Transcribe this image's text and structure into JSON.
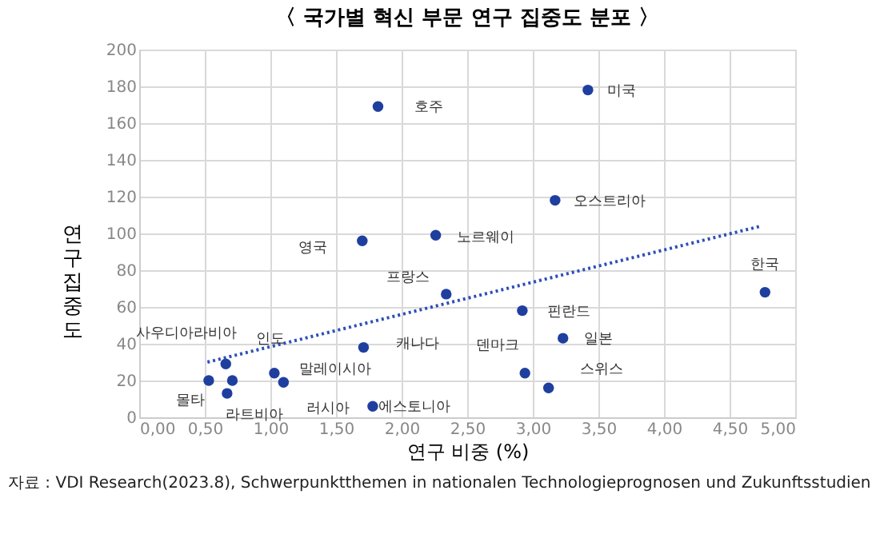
{
  "chart_data": {
    "type": "scatter",
    "title": "〈 국가별 혁신 부문 연구 집중도 분포 〉",
    "xlabel": "연구 비중 (%)",
    "ylabel": "연구 집중도",
    "series": [
      {
        "type": "scatter",
        "color": "#1f3f9f",
        "marker": "circle",
        "x": [
          1.82,
          3.42,
          3.17,
          2.26,
          1.7,
          2.34,
          4.77,
          2.92,
          3.23,
          2.94,
          3.12,
          1.71,
          0.66,
          0.53,
          0.67,
          0.71,
          1.03,
          1.1,
          1.78
        ],
        "values": [
          169,
          178,
          118,
          99,
          96,
          67,
          68,
          58,
          43,
          24,
          16,
          38,
          29,
          20,
          13,
          20,
          24,
          19,
          6
        ]
      },
      {
        "type": "line",
        "color": "#2e4fb8",
        "line_style": "dotted",
        "x": [
          0.52,
          4.74
        ],
        "values": [
          30,
          104
        ]
      }
    ],
    "annotations": [
      {
        "text": "호주",
        "x": 1.82,
        "y": 169
      },
      {
        "text": "미국",
        "x": 3.42,
        "y": 178
      },
      {
        "text": "오스트리아",
        "x": 3.17,
        "y": 118
      },
      {
        "text": "노르웨이",
        "x": 2.26,
        "y": 99
      },
      {
        "text": "영국",
        "x": 1.7,
        "y": 96
      },
      {
        "text": "프랑스",
        "x": 2.34,
        "y": 67
      },
      {
        "text": "한국",
        "x": 4.77,
        "y": 68
      },
      {
        "text": "핀란드",
        "x": 2.92,
        "y": 58
      },
      {
        "text": "일본",
        "x": 3.23,
        "y": 43
      },
      {
        "text": "덴마크",
        "x": 2.94,
        "y": 24
      },
      {
        "text": "스위스",
        "x": 3.12,
        "y": 16
      },
      {
        "text": "캐나다",
        "x": 1.71,
        "y": 38
      },
      {
        "text": "인도",
        "x": 0.66,
        "y": 29
      },
      {
        "text": "사우디아라비아",
        "x": 0.53,
        "y": 20
      },
      {
        "text": "몰타",
        "x": 0.67,
        "y": 13
      },
      {
        "text": "라트비아",
        "x": 0.71,
        "y": 20
      },
      {
        "text": "말레이시아",
        "x": 1.03,
        "y": 24
      },
      {
        "text": "러시아",
        "x": 1.1,
        "y": 19
      },
      {
        "text": "에스토니아",
        "x": 1.78,
        "y": 6
      },
      "자료 : VDI Research(2023.8), Schwerpunktthemen in nationalen Technologieprognosen und Zukunftsstudien"
    ],
    "xlim": [
      0,
      5
    ],
    "xticks": [
      {
        "value": 0,
        "label": "0,00"
      },
      {
        "value": 0.5,
        "label": "0,50"
      },
      {
        "value": 1,
        "label": "1,00"
      },
      {
        "value": 1.5,
        "label": "1,50"
      },
      {
        "value": 2,
        "label": "2,00"
      },
      {
        "value": 2.5,
        "label": "2,50"
      },
      {
        "value": 3,
        "label": "3,00"
      },
      {
        "value": 3.5,
        "label": "3,50"
      },
      {
        "value": 4,
        "label": "4,00"
      },
      {
        "value": 4.5,
        "label": "4,50"
      },
      {
        "value": 5,
        "label": "5,00"
      }
    ],
    "ylim": [
      0,
      200
    ],
    "yticks": [
      0,
      20,
      40,
      60,
      80,
      100,
      120,
      140,
      160,
      180,
      200
    ],
    "grid": true
  }
}
